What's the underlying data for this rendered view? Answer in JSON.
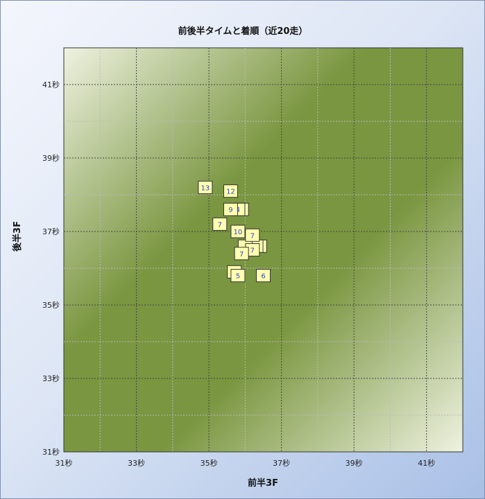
{
  "chart_data": {
    "type": "scatter",
    "title": "前後半タイムと着順（近20走）",
    "xlabel": "前半3F",
    "ylabel": "後半3F",
    "xlim": [
      31,
      42
    ],
    "ylim": [
      31,
      42
    ],
    "xticks": [
      "31秒",
      "33秒",
      "35秒",
      "37秒",
      "39秒",
      "41秒"
    ],
    "yticks": [
      "31秒",
      "33秒",
      "35秒",
      "37秒",
      "39秒",
      "41秒"
    ],
    "grid": true,
    "points": [
      {
        "x": 35.9,
        "y": 37.6,
        "label": ""
      },
      {
        "x": 36.4,
        "y": 36.6,
        "label": ""
      },
      {
        "x": 36.3,
        "y": 36.6,
        "label": ""
      },
      {
        "x": 36.0,
        "y": 36.6,
        "label": ""
      },
      {
        "x": 35.7,
        "y": 35.9,
        "label": "5"
      },
      {
        "x": 34.9,
        "y": 38.2,
        "label": "13"
      },
      {
        "x": 35.6,
        "y": 38.1,
        "label": "12"
      },
      {
        "x": 35.8,
        "y": 37.6,
        "label": "4"
      },
      {
        "x": 35.6,
        "y": 37.6,
        "label": "9"
      },
      {
        "x": 35.3,
        "y": 37.2,
        "label": "7"
      },
      {
        "x": 35.8,
        "y": 37.0,
        "label": "10"
      },
      {
        "x": 36.2,
        "y": 36.9,
        "label": "7"
      },
      {
        "x": 36.2,
        "y": 36.5,
        "label": "7"
      },
      {
        "x": 35.9,
        "y": 36.4,
        "label": "7"
      },
      {
        "x": 35.8,
        "y": 35.8,
        "label": "5"
      },
      {
        "x": 36.5,
        "y": 35.8,
        "label": "6"
      }
    ],
    "colors": {
      "marker_fill": "#ffffb0",
      "marker_text": "#3344cc",
      "plot_dark": "#7a9640",
      "plot_light": "#eef2e0"
    }
  }
}
